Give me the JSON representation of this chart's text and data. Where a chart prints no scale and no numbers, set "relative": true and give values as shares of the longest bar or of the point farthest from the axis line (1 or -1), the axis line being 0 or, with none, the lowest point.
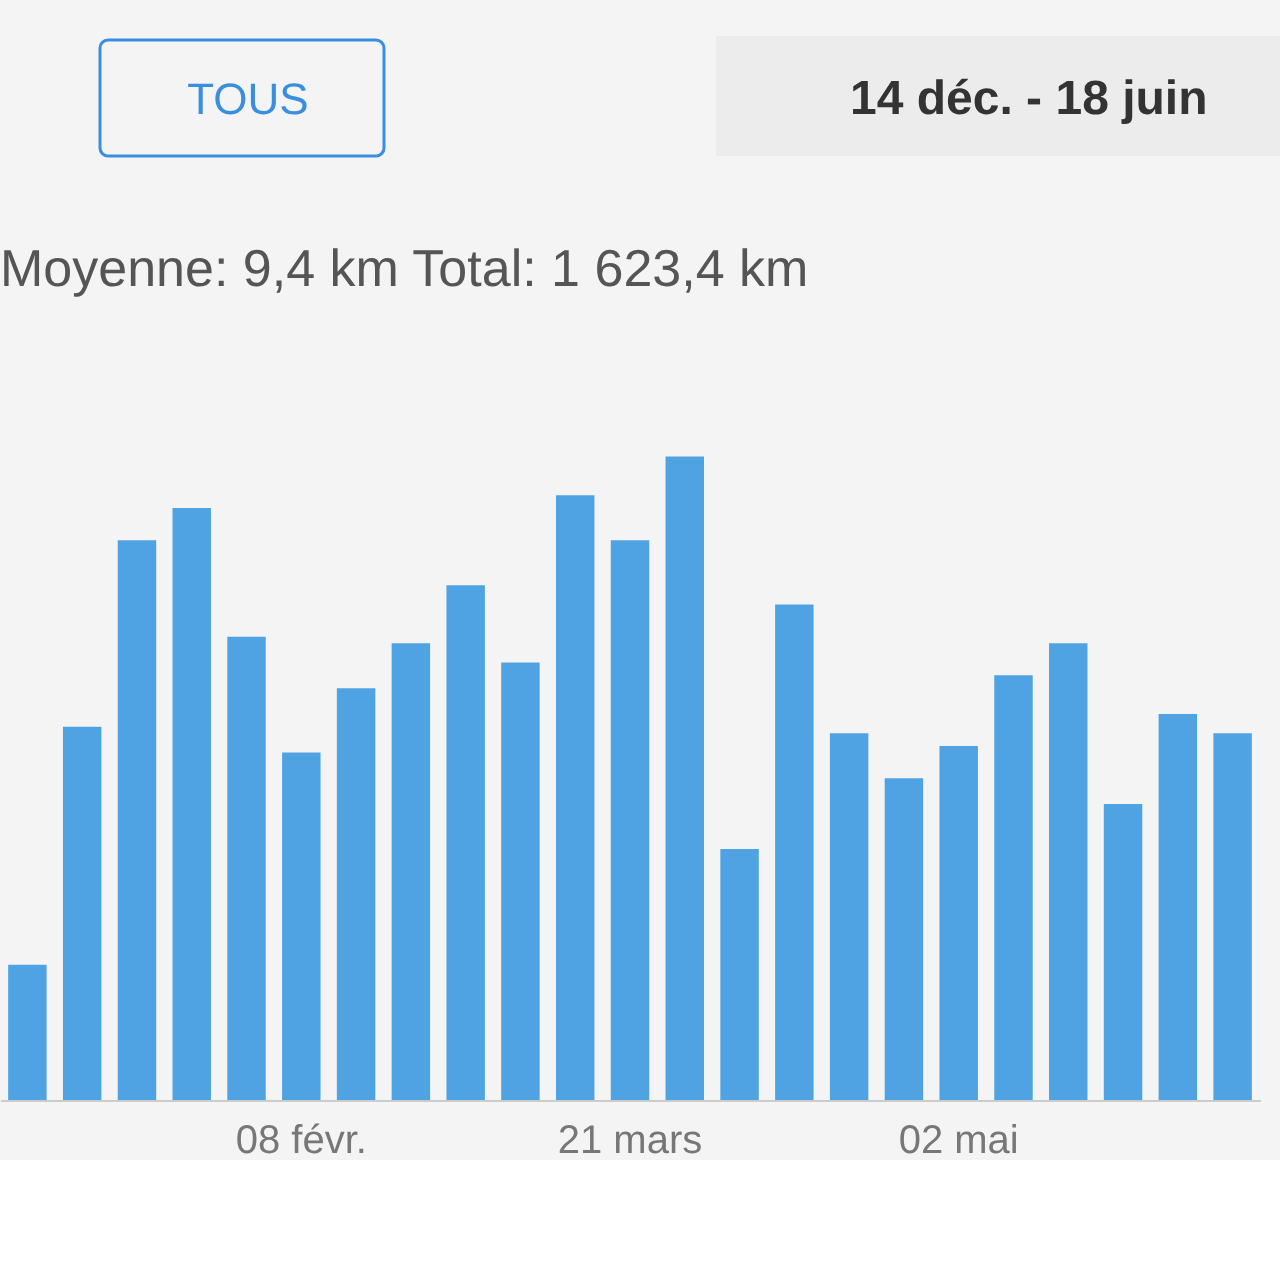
{
  "chart_data": {
    "type": "bar",
    "title": "14 déc. - 18 juin",
    "subtitle": "Moyenne: 9,4 km  Total: 1 623,4 km",
    "annotations": [
      "TOUS"
    ],
    "categories": [
      null,
      null,
      null,
      null,
      null,
      "08 févr.",
      null,
      null,
      null,
      null,
      null,
      "21 mars",
      null,
      null,
      null,
      null,
      null,
      "02 mai",
      null,
      null,
      null,
      null,
      null
    ],
    "relative": true,
    "color": "#4fa3e3",
    "values": [
      0.21,
      0.58,
      0.87,
      0.92,
      0.72,
      0.54,
      0.64,
      0.71,
      0.8,
      0.68,
      0.94,
      0.87,
      1.0,
      0.39,
      0.77,
      0.57,
      0.5,
      0.55,
      0.66,
      0.71,
      0.46,
      0.6,
      0.57
    ]
  }
}
